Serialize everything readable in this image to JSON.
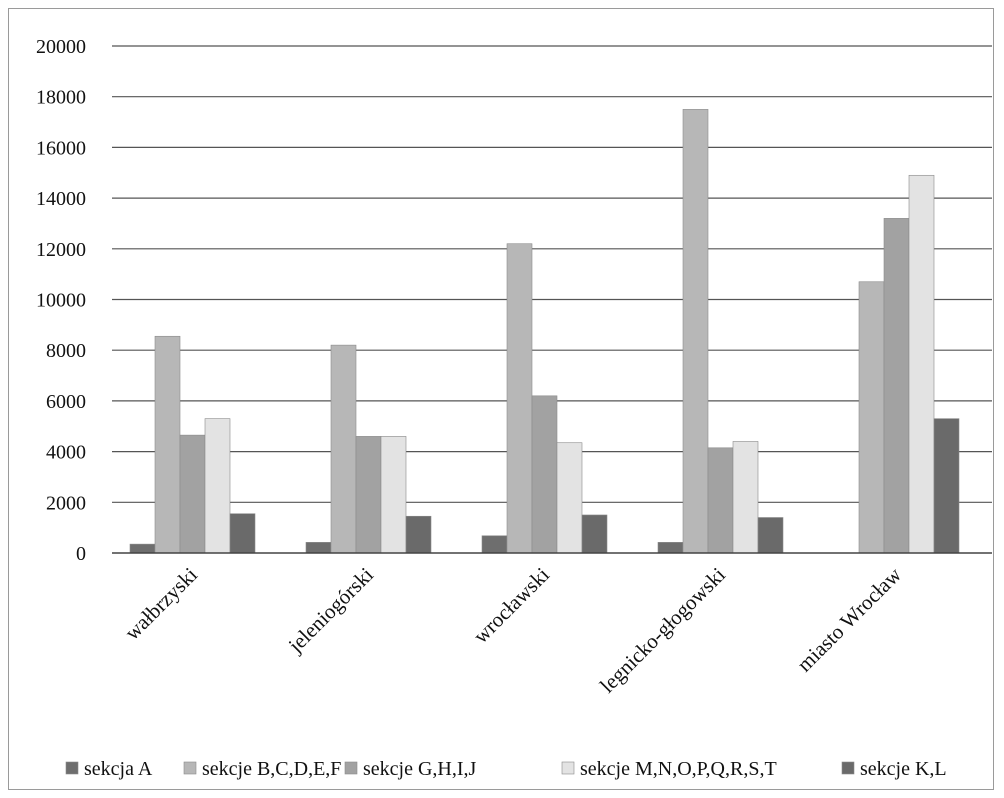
{
  "chart_data": {
    "type": "bar",
    "title": "",
    "xlabel": "",
    "ylabel": "",
    "ylim": [
      0,
      20000
    ],
    "y_ticks": [
      0,
      2000,
      4000,
      6000,
      8000,
      10000,
      12000,
      14000,
      16000,
      18000,
      20000
    ],
    "y_tick_labels": [
      "0",
      "2000",
      "4000",
      "6000",
      "8000",
      "10000",
      "12000",
      "14000",
      "16000",
      "18000",
      "20000"
    ],
    "grid": true,
    "legend_position": "bottom",
    "categories": [
      "wałbrzyski",
      "jeleniogórski",
      "wrocławski",
      "legnicko-głogowski",
      "miasto Wrocław"
    ],
    "series": [
      {
        "name": "sekcja A",
        "color": "#6e6e6e",
        "values": [
          350,
          420,
          680,
          420,
          0
        ]
      },
      {
        "name": "sekcje B,C,D,E,F",
        "color": "#b7b7b7",
        "values": [
          8550,
          8200,
          12200,
          17500,
          10700
        ]
      },
      {
        "name": "sekcje G,H,I,J",
        "color": "#a2a2a2",
        "values": [
          4650,
          4600,
          6200,
          4150,
          13200
        ]
      },
      {
        "name": "sekcje M,N,O,P,Q,R,S,T",
        "color": "#e3e3e3",
        "values": [
          5300,
          4600,
          4350,
          4400,
          14900
        ]
      },
      {
        "name": "sekcje K,L",
        "color": "#6a6a6a",
        "values": [
          1550,
          1450,
          1500,
          1400,
          5300
        ]
      }
    ]
  }
}
